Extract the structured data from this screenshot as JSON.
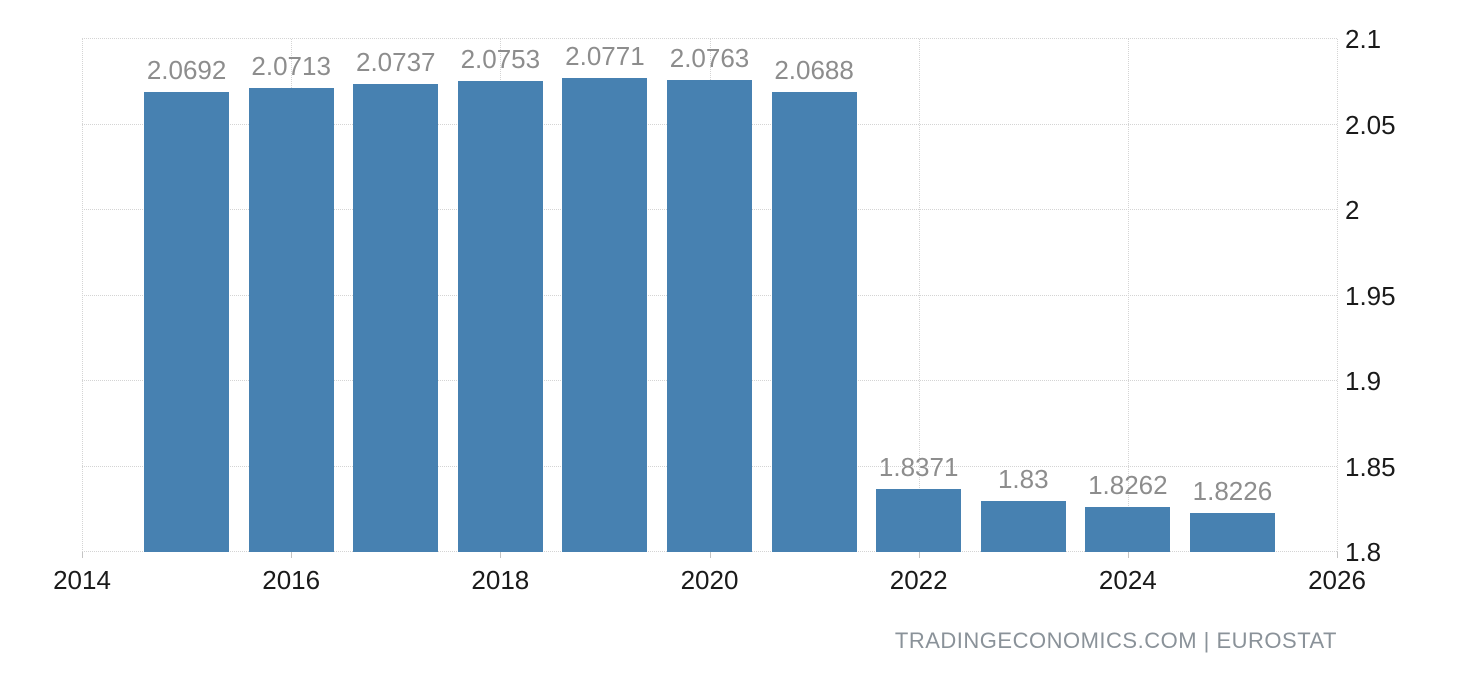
{
  "chart_data": {
    "type": "bar",
    "x": [
      2015,
      2016,
      2017,
      2018,
      2019,
      2020,
      2021,
      2022,
      2023,
      2024,
      2025
    ],
    "values": [
      2.0692,
      2.0713,
      2.0737,
      2.0753,
      2.0771,
      2.0763,
      2.0688,
      1.8371,
      1.83,
      1.8262,
      1.8226
    ],
    "bar_labels": [
      "2.0692",
      "2.0713",
      "2.0737",
      "2.0753",
      "2.0771",
      "2.0763",
      "2.0688",
      "1.8371",
      "1.83",
      "1.8262",
      "1.8226"
    ],
    "title": "",
    "xlabel": "",
    "ylabel": "",
    "xlim": [
      2014,
      2026
    ],
    "ylim": [
      1.8,
      2.1
    ],
    "x_ticks": [
      2014,
      2016,
      2018,
      2020,
      2022,
      2024,
      2026
    ],
    "x_tick_labels": [
      "2014",
      "2016",
      "2018",
      "2020",
      "2022",
      "2024",
      "2026"
    ],
    "y_ticks": [
      1.8,
      1.85,
      1.9,
      1.95,
      2,
      2.05,
      2.1
    ],
    "y_tick_labels": [
      "1.8",
      "1.85",
      "1.9",
      "1.95",
      "2",
      "2.05",
      "2.1"
    ],
    "grid": true,
    "legend_position": "none",
    "y_axis_side": "right",
    "colors": {
      "bar": "#4781b1",
      "value_label": "#8d8d8d",
      "axis_text": "#1a1a1a",
      "grid": "#d4d4d4",
      "tick": "#c4c4c4",
      "attribution": "#8a9299"
    }
  },
  "attribution": {
    "text": "TRADINGECONOMICS.COM | EUROSTAT"
  }
}
